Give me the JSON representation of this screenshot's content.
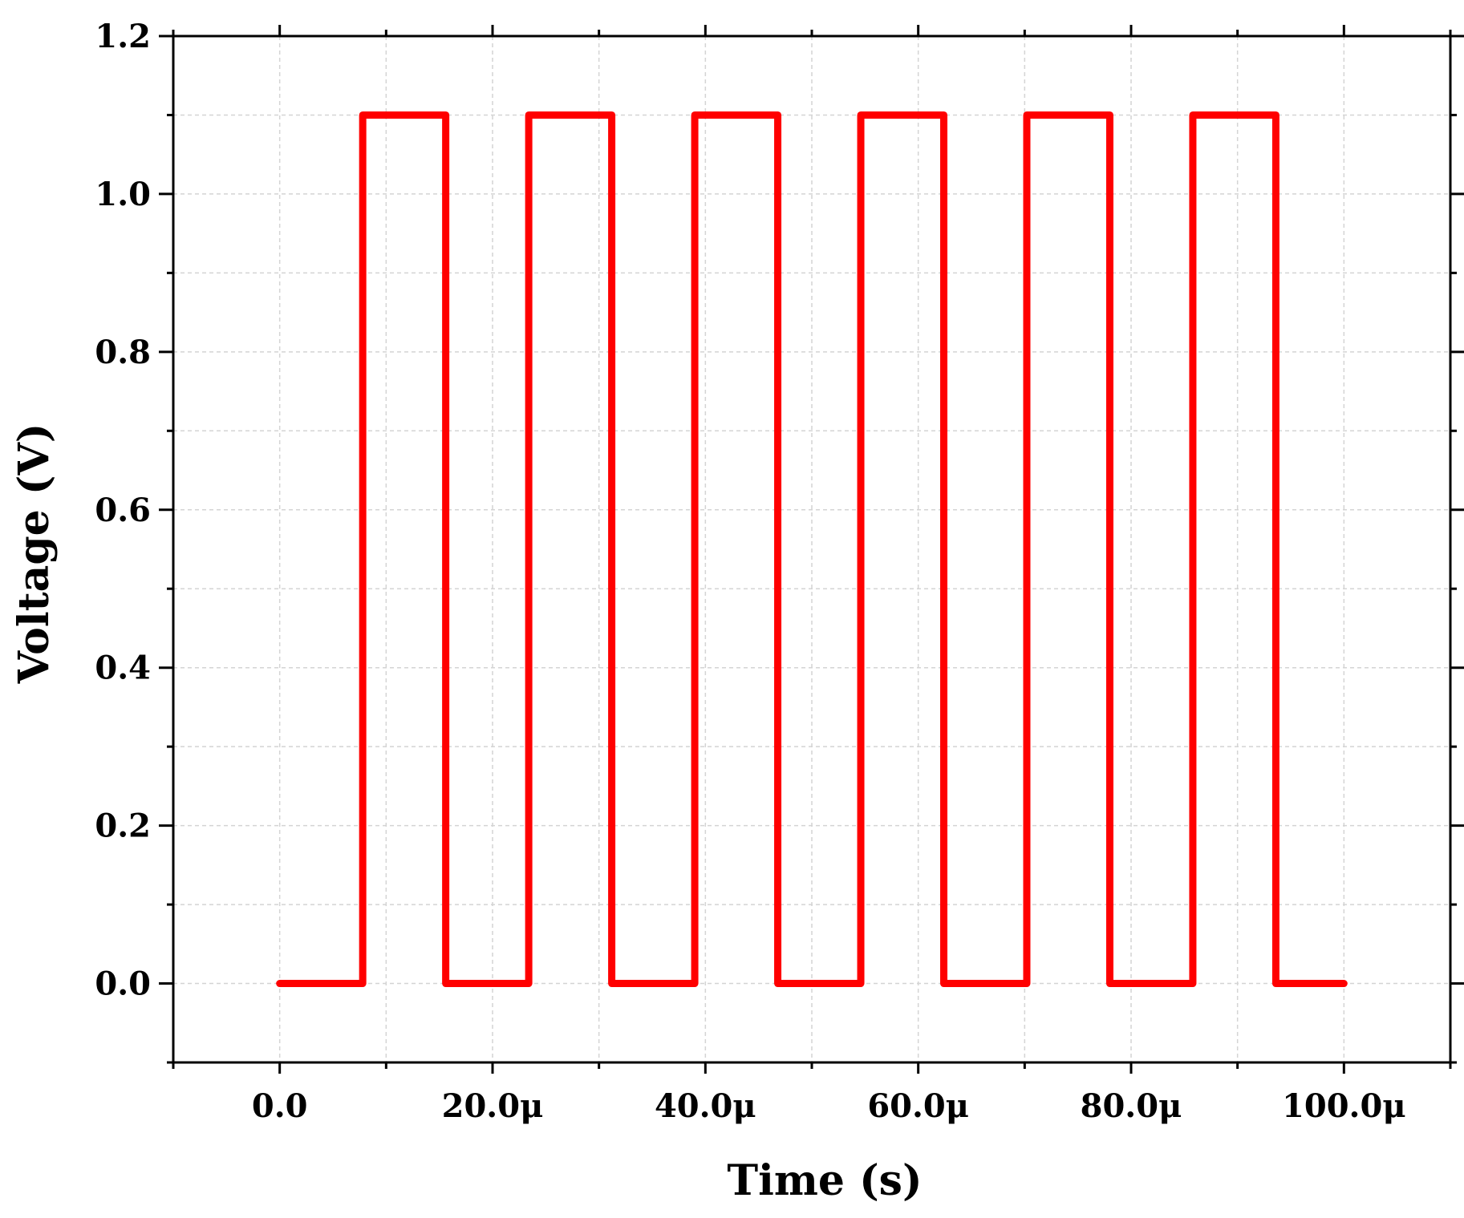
{
  "chart_data": {
    "type": "line",
    "title": "",
    "xlabel": "Time (s)",
    "ylabel": "Voltage (V)",
    "xlim": [
      -1e-05,
      0.00011
    ],
    "ylim": [
      -0.1,
      1.2
    ],
    "x_ticks": [
      {
        "value": 0,
        "label": "0.0"
      },
      {
        "value": 2e-05,
        "label": "20.0μ"
      },
      {
        "value": 4e-05,
        "label": "40.0μ"
      },
      {
        "value": 6e-05,
        "label": "60.0μ"
      },
      {
        "value": 8e-05,
        "label": "80.0μ"
      },
      {
        "value": 0.0001,
        "label": "100.0μ"
      }
    ],
    "y_ticks": [
      {
        "value": 0.0,
        "label": "0.0"
      },
      {
        "value": 0.2,
        "label": "0.2"
      },
      {
        "value": 0.4,
        "label": "0.4"
      },
      {
        "value": 0.6,
        "label": "0.6"
      },
      {
        "value": 0.8,
        "label": "0.8"
      },
      {
        "value": 1.0,
        "label": "1.0"
      },
      {
        "value": 1.2,
        "label": "1.2"
      }
    ],
    "grid": true,
    "series": [
      {
        "color": "#ff0000",
        "x": [
          0,
          7.8e-06,
          7.8e-06,
          1.56e-05,
          1.56e-05,
          2.34e-05,
          2.34e-05,
          3.12e-05,
          3.12e-05,
          3.9e-05,
          3.9e-05,
          4.68e-05,
          4.68e-05,
          5.46e-05,
          5.46e-05,
          6.24e-05,
          6.24e-05,
          7.02e-05,
          7.02e-05,
          7.8e-05,
          7.8e-05,
          8.58e-05,
          8.58e-05,
          9.36e-05,
          9.36e-05,
          0.0001
        ],
        "y": [
          0,
          0,
          1.1,
          1.1,
          0,
          0,
          1.1,
          1.1,
          0,
          0,
          1.1,
          1.1,
          0,
          0,
          1.1,
          1.1,
          0,
          0,
          1.1,
          1.1,
          0,
          0,
          1.1,
          1.1,
          0,
          0
        ]
      }
    ]
  }
}
